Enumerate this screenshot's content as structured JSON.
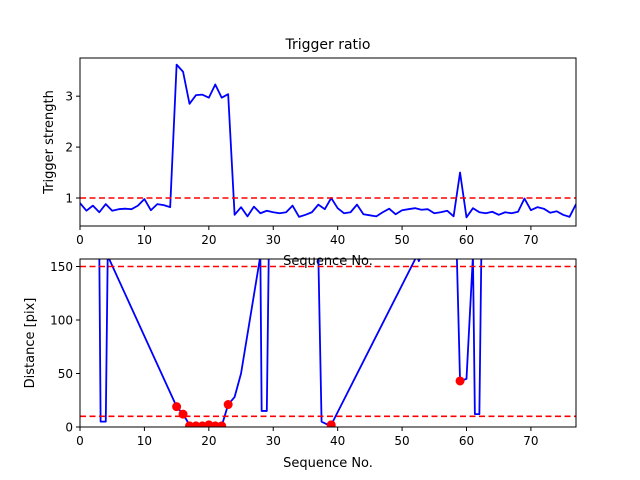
{
  "chart_data": [
    {
      "type": "line",
      "title": "Trigger ratio",
      "xlabel": "Sequence No.",
      "ylabel": "Trigger strength",
      "xlim": [
        0,
        77
      ],
      "ylim": [
        0.45,
        3.75
      ],
      "xticks": [
        0,
        10,
        20,
        30,
        40,
        50,
        60,
        70
      ],
      "yticks": [
        1,
        2,
        3
      ],
      "grid": false,
      "series": [
        {
          "color": "#0000ff",
          "x": [
            0,
            1,
            2,
            3,
            4,
            5,
            6,
            7,
            8,
            9,
            10,
            11,
            12,
            13,
            14,
            15,
            16,
            17,
            18,
            19,
            20,
            21,
            22,
            23,
            24,
            25,
            26,
            27,
            28,
            29,
            30,
            31,
            32,
            33,
            34,
            35,
            36,
            37,
            38,
            39,
            40,
            41,
            42,
            43,
            44,
            45,
            46,
            47,
            48,
            49,
            50,
            51,
            52,
            53,
            54,
            55,
            56,
            57,
            58,
            59,
            60,
            61,
            62,
            63,
            64,
            65,
            66,
            67,
            68,
            69,
            70,
            71,
            72,
            73,
            74,
            75,
            76,
            77
          ],
          "values": [
            0.9,
            0.75,
            0.85,
            0.72,
            0.88,
            0.75,
            0.78,
            0.79,
            0.78,
            0.85,
            0.98,
            0.76,
            0.88,
            0.86,
            0.82,
            3.62,
            3.48,
            2.85,
            3.02,
            3.03,
            2.97,
            3.23,
            2.97,
            3.04,
            0.67,
            0.82,
            0.64,
            0.83,
            0.7,
            0.75,
            0.72,
            0.7,
            0.72,
            0.85,
            0.63,
            0.67,
            0.72,
            0.87,
            0.78,
            1.0,
            0.8,
            0.7,
            0.72,
            0.87,
            0.68,
            0.66,
            0.64,
            0.72,
            0.79,
            0.68,
            0.76,
            0.78,
            0.8,
            0.77,
            0.78,
            0.7,
            0.72,
            0.75,
            0.64,
            1.5,
            0.62,
            0.8,
            0.72,
            0.7,
            0.73,
            0.67,
            0.72,
            0.7,
            0.73,
            0.99,
            0.76,
            0.82,
            0.79,
            0.71,
            0.74,
            0.67,
            0.63,
            0.88
          ]
        }
      ],
      "reference_lines": [
        {
          "y": 1.0,
          "color": "#ff0000",
          "style": "dashed"
        }
      ]
    },
    {
      "type": "line",
      "title": "",
      "xlabel": "Sequence No.",
      "ylabel": "Distance [pix]",
      "xlim": [
        0,
        77
      ],
      "ylim": [
        0,
        157
      ],
      "xticks": [
        0,
        10,
        20,
        30,
        40,
        50,
        60,
        70
      ],
      "yticks": [
        0,
        50,
        100,
        150
      ],
      "grid": false,
      "series": [
        {
          "color": "#0000ff",
          "x": [
            3,
            3.2,
            4,
            4.3,
            15,
            16,
            17,
            18,
            19,
            20,
            21,
            22,
            23,
            24,
            25,
            28,
            28.2,
            29,
            29.3,
            37,
            37.5,
            38.5,
            39,
            52.3,
            52.6,
            53,
            58.5,
            59,
            60,
            61,
            61.3,
            62,
            62.3
          ],
          "values": [
            160,
            5,
            5,
            160,
            19,
            12,
            2,
            2,
            2,
            2,
            1,
            1,
            21,
            28,
            50,
            160,
            15,
            15,
            160,
            160,
            5,
            2,
            2,
            160,
            155,
            160,
            160,
            43,
            45,
            160,
            12,
            12,
            160
          ]
        },
        {
          "color": "#ff0000",
          "marker": "o",
          "x": [
            15,
            16,
            17,
            18,
            19,
            20,
            21,
            22,
            23,
            39,
            59
          ],
          "values": [
            19,
            12,
            1,
            1,
            1,
            2,
            1,
            1,
            21,
            2,
            43
          ]
        }
      ],
      "reference_lines": [
        {
          "y": 150,
          "color": "#ff0000",
          "style": "dashed"
        },
        {
          "y": 10,
          "color": "#ff0000",
          "style": "dashed"
        }
      ]
    }
  ]
}
